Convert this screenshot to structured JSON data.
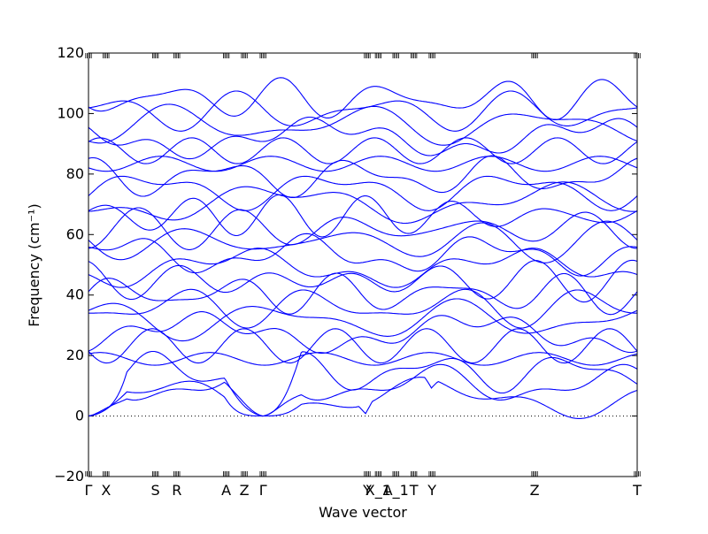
{
  "chart_data": {
    "type": "line",
    "xlabel": "Wave vector",
    "ylabel": "Frequency (cm⁻¹)",
    "ylim": [
      -20,
      120
    ],
    "xlim": [
      0,
      1
    ],
    "yticks": [
      -20,
      0,
      20,
      40,
      60,
      80,
      100,
      120
    ],
    "high_symmetry_points": [
      {
        "label": "Γ",
        "x": 0.0
      },
      {
        "label": "X",
        "x": 0.032
      },
      {
        "label": "S",
        "x": 0.122
      },
      {
        "label": "R",
        "x": 0.161
      },
      {
        "label": "A",
        "x": 0.251
      },
      {
        "label": "Z",
        "x": 0.284
      },
      {
        "label": "Γ",
        "x": 0.318
      },
      {
        "label": "Y",
        "x": 0.508
      },
      {
        "label": "X_1",
        "x": 0.528
      },
      {
        "label": "A_1",
        "x": 0.56
      },
      {
        "label": "T",
        "x": 0.593
      },
      {
        "label": "Y",
        "x": 0.626
      },
      {
        "label": "Z",
        "x": 0.813
      },
      {
        "label": "T",
        "x": 1.0
      }
    ],
    "zero_line": true,
    "line_color": "#0000ff",
    "grid": false,
    "legend": "none",
    "band_count": 24
  }
}
